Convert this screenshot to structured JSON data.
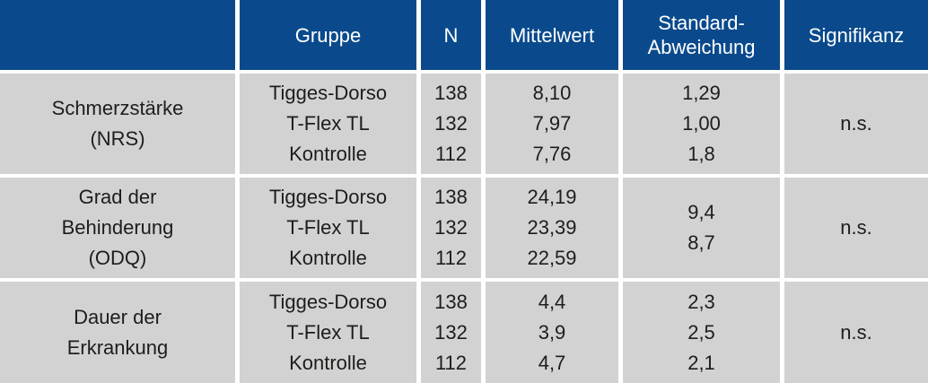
{
  "colors": {
    "header_bg": "#0a4a8c",
    "header_text": "#ffffff",
    "body_bg": "#d2d2d2",
    "body_text": "#1d1d1b",
    "gap": "#ffffff"
  },
  "table": {
    "header": {
      "parameter": "",
      "gruppe": "Gruppe",
      "n": "N",
      "mittelwert": "Mittelwert",
      "standard_abweichung": "Standard-\nAbweichung",
      "signifikanz": "Signifikanz"
    },
    "rows": [
      {
        "param_lines": [
          "Schmerzstärke",
          "(NRS)"
        ],
        "gruppe": [
          "Tigges-Dorso",
          "T-Flex TL",
          "Kontrolle"
        ],
        "n": [
          "138",
          "132",
          "112"
        ],
        "mittelwert": [
          "8,10",
          "7,97",
          "7,76"
        ],
        "std": [
          "1,29",
          "1,00",
          "1,8"
        ],
        "signifikanz": "n.s."
      },
      {
        "param_lines": [
          "Grad der",
          "Behinderung",
          "(ODQ)"
        ],
        "gruppe": [
          "Tigges-Dorso",
          "T-Flex TL",
          "Kontrolle"
        ],
        "n": [
          "138",
          "132",
          "112"
        ],
        "mittelwert": [
          "24,19",
          "23,39",
          "22,59"
        ],
        "std": [
          "9,4",
          "8,7"
        ],
        "signifikanz": "n.s."
      },
      {
        "param_lines": [
          "Dauer der",
          "Erkrankung"
        ],
        "gruppe": [
          "Tigges-Dorso",
          "T-Flex TL",
          "Kontrolle"
        ],
        "n": [
          "138",
          "132",
          "112"
        ],
        "mittelwert": [
          "4,4",
          "3,9",
          "4,7"
        ],
        "std": [
          "2,3",
          "2,5",
          "2,1"
        ],
        "signifikanz": "n.s."
      }
    ]
  },
  "chart_data": {
    "type": "table",
    "columns": [
      "",
      "Gruppe",
      "N",
      "Mittelwert",
      "Standard-Abweichung",
      "Signifikanz"
    ],
    "rows": [
      {
        "parameter": "Schmerzstärke (NRS)",
        "gruppen": [
          {
            "gruppe": "Tigges-Dorso",
            "n": 138,
            "mittelwert": "8,10",
            "standard_abweichung": "1,29"
          },
          {
            "gruppe": "T-Flex TL",
            "n": 132,
            "mittelwert": "7,97",
            "standard_abweichung": "1,00"
          },
          {
            "gruppe": "Kontrolle",
            "n": 112,
            "mittelwert": "7,76",
            "standard_abweichung": "1,8"
          }
        ],
        "signifikanz": "n.s."
      },
      {
        "parameter": "Grad der Behinderung (ODQ)",
        "gruppen": [
          {
            "gruppe": "Tigges-Dorso",
            "n": 138,
            "mittelwert": "24,19"
          },
          {
            "gruppe": "T-Flex TL",
            "n": 132,
            "mittelwert": "23,39"
          },
          {
            "gruppe": "Kontrolle",
            "n": 112,
            "mittelwert": "22,59"
          }
        ],
        "standard_abweichung_shared": [
          "9,4",
          "8,7"
        ],
        "signifikanz": "n.s."
      },
      {
        "parameter": "Dauer der Erkrankung",
        "gruppen": [
          {
            "gruppe": "Tigges-Dorso",
            "n": 138,
            "mittelwert": "4,4",
            "standard_abweichung": "2,3"
          },
          {
            "gruppe": "T-Flex TL",
            "n": 132,
            "mittelwert": "3,9",
            "standard_abweichung": "2,5"
          },
          {
            "gruppe": "Kontrolle",
            "n": 112,
            "mittelwert": "4,7",
            "standard_abweichung": "2,1"
          }
        ],
        "signifikanz": "n.s."
      }
    ]
  }
}
